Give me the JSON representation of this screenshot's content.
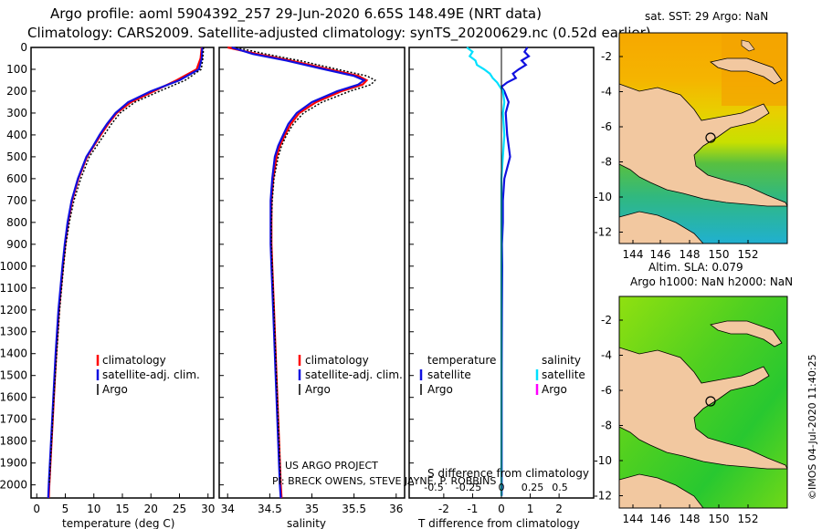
{
  "header": {
    "title_line1": "Argo profile: aoml 5904392_257 29-Jun-2020 6.65S 148.49E (NRT data)",
    "title_line2": "Climatology: CARS2009. Satellite-adjusted climatology: synTS_20200629.nc (0.52d earlier)"
  },
  "depth_axis": {
    "ticks": [
      0,
      100,
      200,
      300,
      400,
      500,
      600,
      700,
      800,
      900,
      1000,
      1100,
      1200,
      1300,
      1400,
      1500,
      1600,
      1700,
      1800,
      1900,
      2000
    ],
    "ylim": [
      0,
      2060
    ]
  },
  "colors": {
    "climatology": "#ff0000",
    "satellite": "#1010e0",
    "argo": "#000000",
    "satellite_s": "#00e0ff",
    "argo_s": "#ff00ff"
  },
  "chart_data": [
    {
      "type": "line",
      "name": "temperature",
      "xlabel": "temperature (deg C)",
      "xlim": [
        -1,
        31
      ],
      "xticks": [
        0,
        5,
        10,
        15,
        20,
        25,
        30
      ],
      "series": [
        {
          "name": "climatology",
          "depth": [
            0,
            50,
            100,
            150,
            200,
            250,
            300,
            350,
            400,
            450,
            500,
            600,
            700,
            800,
            900,
            1000,
            1200,
            1400,
            1600,
            1800,
            2000,
            2060
          ],
          "values": [
            28.9,
            28.7,
            28.0,
            24.5,
            20.5,
            16.5,
            14.0,
            12.5,
            11.2,
            10.0,
            8.8,
            7.3,
            6.2,
            5.5,
            5.0,
            4.6,
            3.9,
            3.4,
            3.0,
            2.6,
            2.2,
            2.1
          ]
        },
        {
          "name": "satellite-adj. clim.",
          "depth": [
            0,
            50,
            100,
            150,
            200,
            250,
            300,
            350,
            400,
            450,
            500,
            600,
            700,
            800,
            900,
            1000,
            1200,
            1400,
            1600,
            1800,
            2000,
            2060
          ],
          "values": [
            29.0,
            28.9,
            28.4,
            25.0,
            20.0,
            16.0,
            13.8,
            12.3,
            11.0,
            9.9,
            8.7,
            7.2,
            6.1,
            5.4,
            4.9,
            4.5,
            3.8,
            3.3,
            2.9,
            2.5,
            2.1,
            2.0
          ]
        },
        {
          "name": "Argo",
          "depth": [
            0,
            50,
            100,
            150,
            200,
            250,
            300,
            350,
            400,
            450,
            500,
            600,
            700,
            800,
            900,
            1000,
            1200,
            1400,
            1600,
            1800,
            2000
          ],
          "values": [
            29.2,
            29.1,
            28.8,
            26.0,
            21.5,
            17.2,
            14.6,
            13.1,
            11.8,
            10.5,
            9.2,
            7.7,
            6.5,
            5.7,
            5.1,
            4.7,
            4.0,
            3.5,
            3.0,
            2.6,
            2.2
          ]
        }
      ],
      "legend": [
        "climatology",
        "satellite-adj. clim.",
        "Argo"
      ]
    },
    {
      "type": "line",
      "name": "salinity",
      "xlabel": "salinity",
      "xlim": [
        33.9,
        36.1
      ],
      "xticks": [
        34,
        34.5,
        35,
        35.5,
        36
      ],
      "series": [
        {
          "name": "climatology",
          "depth": [
            0,
            30,
            60,
            100,
            130,
            150,
            170,
            200,
            250,
            300,
            350,
            400,
            450,
            500,
            600,
            700,
            800,
            900,
            1000,
            1200,
            1500,
            2000,
            2060
          ],
          "values": [
            34.0,
            34.35,
            34.75,
            35.2,
            35.55,
            35.65,
            35.6,
            35.35,
            35.05,
            34.85,
            34.75,
            34.68,
            34.62,
            34.58,
            34.54,
            34.52,
            34.52,
            34.52,
            34.53,
            34.55,
            34.58,
            34.63,
            34.64
          ]
        },
        {
          "name": "satellite-adj. clim.",
          "depth": [
            0,
            30,
            60,
            100,
            130,
            150,
            170,
            200,
            250,
            300,
            350,
            400,
            450,
            500,
            600,
            700,
            800,
            900,
            1000,
            1200,
            1500,
            2000,
            2060
          ],
          "values": [
            34.05,
            34.3,
            34.7,
            35.15,
            35.5,
            35.62,
            35.55,
            35.3,
            35.0,
            34.82,
            34.72,
            34.66,
            34.6,
            34.56,
            34.53,
            34.51,
            34.51,
            34.51,
            34.52,
            34.54,
            34.57,
            34.62,
            34.63
          ]
        },
        {
          "name": "Argo",
          "depth": [
            0,
            30,
            60,
            100,
            130,
            150,
            170,
            200,
            250,
            300,
            350,
            400,
            450,
            500,
            600,
            700,
            800,
            900,
            1000,
            1200,
            1500,
            2000
          ],
          "values": [
            34.1,
            34.45,
            34.85,
            35.3,
            35.65,
            35.75,
            35.7,
            35.45,
            35.12,
            34.9,
            34.78,
            34.7,
            34.64,
            34.6,
            34.55,
            34.53,
            34.52,
            34.52,
            34.53,
            34.55,
            34.58,
            34.63
          ]
        }
      ],
      "legend": [
        "climatology",
        "satellite-adj. clim.",
        "Argo"
      ]
    },
    {
      "type": "line",
      "name": "difference",
      "xlabel": "T difference from climatology",
      "xlabel_secondary": "S difference from climatology",
      "xlim": [
        -3.2,
        3.2
      ],
      "xticks": [
        -2,
        -1,
        0,
        1,
        2
      ],
      "xticks_s": [
        -0.5,
        -0.25,
        0,
        0.25,
        0.5
      ],
      "series": [
        {
          "name": "satellite T",
          "depth": [
            0,
            20,
            40,
            60,
            80,
            100,
            120,
            140,
            160,
            180,
            200,
            250,
            300,
            400,
            500,
            600,
            700,
            800,
            900,
            1000,
            1200,
            1500,
            2000,
            2050
          ],
          "values": [
            0.9,
            0.8,
            0.95,
            0.7,
            0.85,
            0.6,
            0.4,
            0.5,
            0.2,
            0.0,
            0.1,
            0.25,
            0.15,
            0.2,
            0.3,
            0.1,
            0.05,
            0.05,
            0.02,
            0.03,
            0.02,
            0.01,
            0.01,
            0.01
          ]
        },
        {
          "name": "satellite S",
          "depth": [
            0,
            20,
            40,
            60,
            80,
            100,
            120,
            140,
            160,
            180,
            200,
            250,
            300,
            400,
            500,
            600,
            700,
            800,
            900,
            1000,
            1200,
            1500,
            2000,
            2050
          ],
          "values": [
            -1.2,
            -1.0,
            -1.1,
            -0.9,
            -0.85,
            -0.6,
            -0.4,
            -0.3,
            -0.15,
            -0.05,
            0.05,
            0.1,
            0.05,
            0.1,
            0.05,
            0.0,
            0.0,
            0.0,
            0.0,
            0.0,
            0.0,
            0.0,
            0.0,
            0.0
          ]
        }
      ],
      "legend_t": {
        "heading": "temperature",
        "items": [
          "satellite",
          "Argo"
        ]
      },
      "legend_s": {
        "heading": "salinity",
        "items": [
          "satellite",
          "Argo"
        ]
      }
    }
  ],
  "credits": {
    "line1": "US ARGO PROJECT",
    "line2": "PI: BRECK OWENS, STEVE JAYNE, P. ROBBINS"
  },
  "map_top": {
    "title": "sat. SST: 29 Argo: NaN",
    "lon_ticks": [
      "144",
      "146",
      "148",
      "150",
      "152"
    ],
    "lat_ticks": [
      "-2",
      "-4",
      "-6",
      "-8",
      "-10",
      "-12"
    ]
  },
  "map_bottom": {
    "title_line1": "Altim. SLA: 0.079",
    "title_line2": "Argo h1000: NaN h2000: NaN",
    "lon_ticks": [
      "144",
      "146",
      "148",
      "150",
      "152"
    ],
    "lat_ticks": [
      "-2",
      "-4",
      "-6",
      "-8",
      "-10",
      "-12"
    ]
  },
  "watermark": "©IMOS 04-Jul-2020 11:40:25"
}
